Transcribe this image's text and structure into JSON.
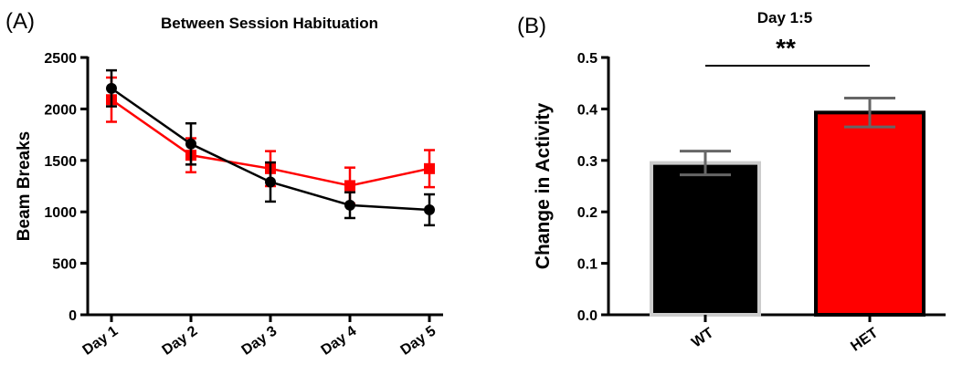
{
  "chart_data": [
    {
      "panel": "(A)",
      "type": "line",
      "title": "Between Session Habituation",
      "xlabel": "",
      "ylabel": "Beam Breaks",
      "categories": [
        "Day 1",
        "Day 2",
        "Day 3",
        "Day 4",
        "Day 5"
      ],
      "ylim": [
        0,
        2500
      ],
      "yticks": [
        0,
        500,
        1000,
        1500,
        2000,
        2500
      ],
      "legend": "none",
      "grid": false,
      "series": [
        {
          "color": "#000000",
          "marker": "circle",
          "values": [
            2200,
            1660,
            1290,
            1065,
            1020
          ],
          "error": [
            175,
            200,
            190,
            125,
            150
          ]
        },
        {
          "color": "#ff0000",
          "marker": "square",
          "values": [
            2090,
            1550,
            1420,
            1255,
            1420
          ],
          "error": [
            215,
            165,
            170,
            175,
            180
          ]
        }
      ]
    },
    {
      "panel": "(B)",
      "type": "bar",
      "title": "Day 1:5",
      "xlabel": "",
      "ylabel": "Change in Activity",
      "categories": [
        "WT",
        "HET"
      ],
      "values": [
        0.295,
        0.393
      ],
      "error": [
        0.023,
        0.028
      ],
      "colors": [
        "#000000",
        "#ff0000"
      ],
      "ylim": [
        0,
        0.5
      ],
      "yticks": [
        "0.0",
        "0.1",
        "0.2",
        "0.3",
        "0.4",
        "0.5"
      ],
      "significance": "**",
      "legend": "none",
      "grid": false
    }
  ]
}
